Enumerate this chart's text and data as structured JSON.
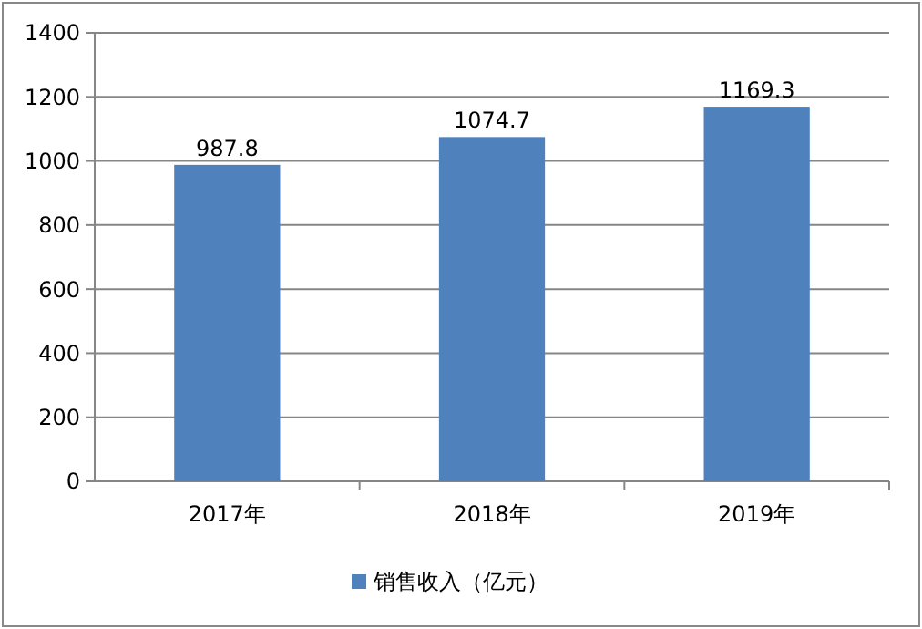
{
  "chart_data": {
    "type": "bar",
    "categories": [
      "2017年",
      "2018年",
      "2019年"
    ],
    "series": [
      {
        "name": "销售收入（亿元）",
        "color": "#4f81bd",
        "values": [
          987.8,
          1074.7,
          1169.3
        ]
      }
    ],
    "ylim": [
      0,
      1400
    ],
    "yticks": [
      0,
      200,
      400,
      600,
      800,
      1000,
      1200,
      1400
    ],
    "grid": "y",
    "legend": "bottom",
    "data_labels": true
  }
}
